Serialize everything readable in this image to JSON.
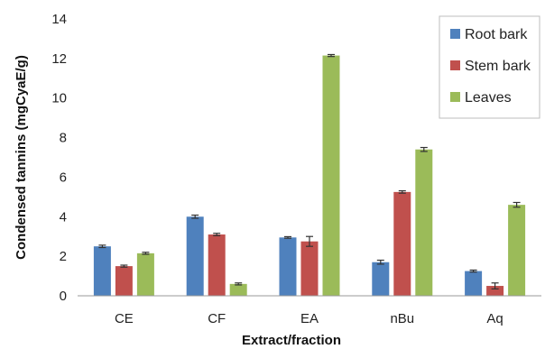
{
  "chart_data": {
    "type": "bar",
    "title": "",
    "xlabel": "Extract/fraction",
    "ylabel": "Condensed tannins (mgCyaE/g)",
    "ylim": [
      0,
      14
    ],
    "yticks": [
      0,
      2,
      4,
      6,
      8,
      10,
      12,
      14
    ],
    "grid": false,
    "legend_position": "top-right",
    "categories": [
      "CE",
      "CF",
      "EA",
      "nBu",
      "Aq"
    ],
    "series": [
      {
        "name": "Root bark",
        "color": "#4f81bd",
        "values": [
          2.5,
          4.0,
          2.95,
          1.7,
          1.25
        ],
        "errors": [
          0.06,
          0.08,
          0.04,
          0.1,
          0.05
        ]
      },
      {
        "name": "Stem bark",
        "color": "#c0504d",
        "values": [
          1.5,
          3.1,
          2.75,
          5.25,
          0.5
        ],
        "errors": [
          0.05,
          0.06,
          0.25,
          0.06,
          0.15
        ]
      },
      {
        "name": "Leaves",
        "color": "#9bbb59",
        "values": [
          2.15,
          0.6,
          12.15,
          7.4,
          4.6
        ],
        "errors": [
          0.05,
          0.05,
          0.05,
          0.1,
          0.12
        ]
      }
    ]
  }
}
